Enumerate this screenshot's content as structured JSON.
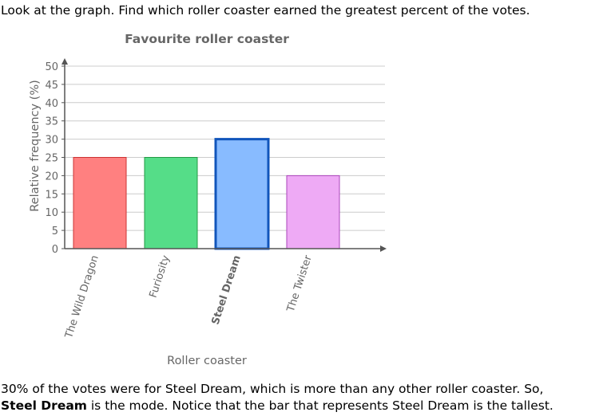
{
  "question": {
    "text": "Look at the graph. Find which roller coaster earned the greatest percent of the votes."
  },
  "answer": {
    "line1": "30% of the votes were for Steel Dream, which is more than any other roller coaster. So,",
    "bold": "Steel Dream",
    "rest": " is the mode. Notice that the bar that represents Steel Dream is the tallest."
  },
  "colors": {
    "title": "#666666",
    "axis": "#555555",
    "grid": "#cccccc",
    "label": "#666666"
  },
  "chart_data": {
    "type": "bar",
    "title": "Favourite roller coaster",
    "xlabel": "Roller coaster",
    "ylabel": "Relative frequency (%)",
    "ylim": [
      0,
      50
    ],
    "yticks": [
      0,
      5,
      10,
      15,
      20,
      25,
      30,
      35,
      40,
      45,
      50
    ],
    "grid": true,
    "categories": [
      "The Wild Dragon",
      "Furiosity",
      "Steel Dream",
      "The Twister"
    ],
    "values": [
      25,
      25,
      30,
      20
    ],
    "highlighted": "Steel Dream",
    "bar_fill": [
      "#ff8080",
      "#55dd88",
      "#88bbff",
      "#eeaaf5"
    ],
    "bar_stroke": [
      "#cc3333",
      "#229944",
      "#1155bb",
      "#aa44bb"
    ]
  }
}
